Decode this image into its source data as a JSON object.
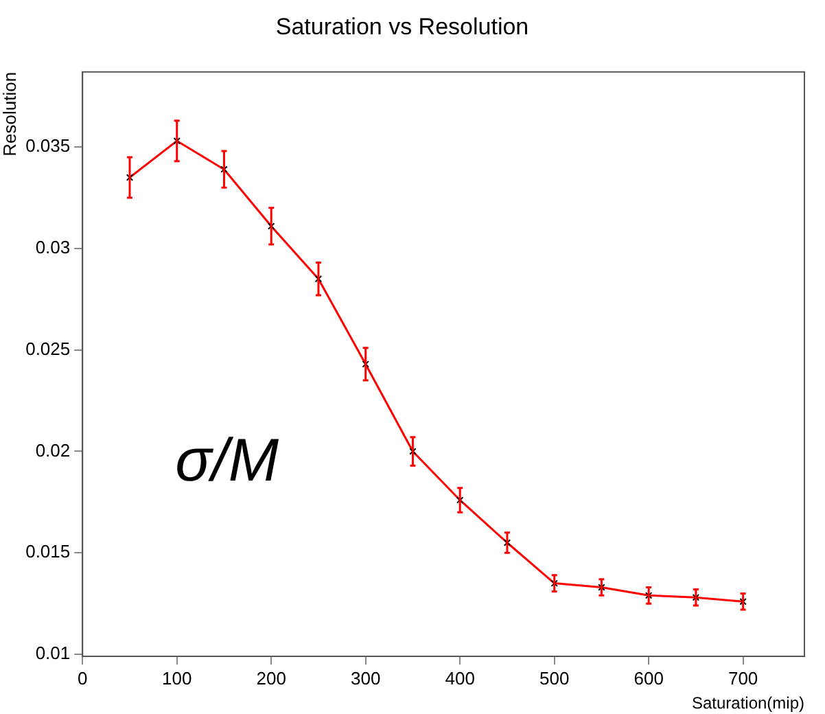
{
  "chart_data": {
    "type": "line",
    "title": "Saturation vs Resolution",
    "xlabel": "Saturation(mip)",
    "ylabel": "Resolution",
    "x": [
      50,
      100,
      150,
      200,
      250,
      300,
      350,
      400,
      450,
      500,
      550,
      600,
      650,
      700
    ],
    "series": [
      {
        "color": "#ff0000",
        "values": [
          0.0335,
          0.0353,
          0.0339,
          0.0311,
          0.0285,
          0.0243,
          0.02,
          0.0176,
          0.0155,
          0.0135,
          0.0133,
          0.0129,
          0.0128,
          0.0126
        ],
        "errors": [
          0.001,
          0.001,
          0.0009,
          0.0009,
          0.0008,
          0.0008,
          0.0007,
          0.0006,
          0.0005,
          0.0004,
          0.0004,
          0.0004,
          0.0004,
          0.0004
        ]
      }
    ],
    "xlim": [
      0,
      765
    ],
    "xticks": [
      0,
      100,
      200,
      300,
      400,
      500,
      600,
      700
    ],
    "ylim": [
      0.0099,
      0.0387
    ],
    "yticks": [
      0.01,
      0.015,
      0.02,
      0.025,
      0.03,
      0.035
    ],
    "annotations": [
      "σ/M"
    ],
    "marker": "cross",
    "line_style": "solid",
    "grid": false,
    "legend": false
  }
}
